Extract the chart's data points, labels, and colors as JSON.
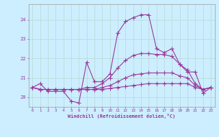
{
  "xlabel": "Windchill (Refroidissement éolien,°C)",
  "ylabel": "",
  "bg_color": "#cceeff",
  "grid_color": "#aaddcc",
  "line_color": "#993399",
  "xlim": [
    -0.5,
    23.5
  ],
  "ylim": [
    19.5,
    24.8
  ],
  "xticks": [
    0,
    1,
    2,
    3,
    4,
    5,
    6,
    7,
    8,
    9,
    10,
    11,
    12,
    13,
    14,
    15,
    16,
    17,
    18,
    19,
    20,
    21,
    22,
    23
  ],
  "yticks": [
    20,
    21,
    22,
    23,
    24
  ],
  "series1": [
    20.5,
    20.7,
    20.3,
    20.3,
    20.3,
    19.8,
    19.7,
    21.8,
    20.8,
    20.8,
    21.2,
    23.3,
    23.9,
    24.1,
    24.25,
    24.25,
    22.5,
    22.3,
    22.5,
    21.7,
    21.3,
    21.3,
    20.2,
    20.5
  ],
  "series2": [
    20.5,
    20.4,
    20.4,
    20.4,
    20.4,
    20.4,
    20.4,
    20.4,
    20.4,
    20.4,
    20.45,
    20.5,
    20.55,
    20.6,
    20.65,
    20.7,
    20.7,
    20.7,
    20.7,
    20.7,
    20.7,
    20.5,
    20.4,
    20.5
  ],
  "series3": [
    20.5,
    20.4,
    20.4,
    20.4,
    20.4,
    20.4,
    20.4,
    20.4,
    20.4,
    20.5,
    20.6,
    20.8,
    21.0,
    21.15,
    21.2,
    21.25,
    21.25,
    21.25,
    21.25,
    21.1,
    21.0,
    20.6,
    20.4,
    20.5
  ],
  "series4": [
    20.5,
    20.4,
    20.4,
    20.4,
    20.4,
    20.4,
    20.4,
    20.5,
    20.5,
    20.7,
    21.0,
    21.5,
    21.9,
    22.15,
    22.25,
    22.25,
    22.2,
    22.2,
    22.1,
    21.7,
    21.4,
    20.7,
    20.4,
    20.5
  ]
}
